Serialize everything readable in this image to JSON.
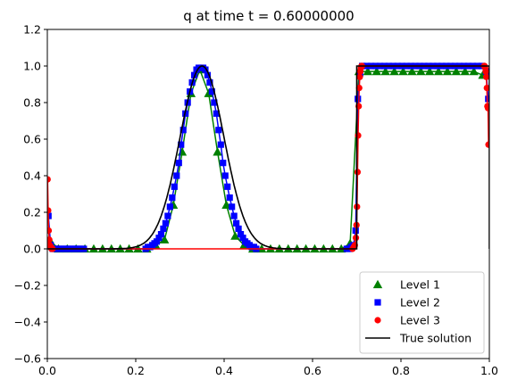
{
  "chart_data": {
    "type": "line",
    "title": "q at time t =     0.60000000",
    "xlabel": "",
    "ylabel": "",
    "xlim": [
      0,
      1
    ],
    "ylim": [
      -0.6,
      1.2
    ],
    "xticks": [
      "0.0",
      "0.2",
      "0.4",
      "0.6",
      "0.8",
      "1.0"
    ],
    "yticks": [
      "−0.6",
      "−0.4",
      "−0.2",
      "0.0",
      "0.2",
      "0.4",
      "0.6",
      "0.8",
      "1.0",
      "1.2"
    ],
    "grid": false,
    "legend_position": "bottom-right",
    "series": [
      {
        "name": "Level 1",
        "marker": "triangle",
        "color": "#008000",
        "points": [
          [
            0.005,
            0.05
          ],
          [
            0.025,
            0.0
          ],
          [
            0.045,
            0.0
          ],
          [
            0.065,
            0.0
          ],
          [
            0.085,
            0.0
          ],
          [
            0.105,
            0.0
          ],
          [
            0.125,
            0.0
          ],
          [
            0.145,
            0.0
          ],
          [
            0.165,
            0.0
          ],
          [
            0.185,
            0.0
          ],
          [
            0.205,
            0.0
          ],
          [
            0.225,
            0.0
          ],
          [
            0.245,
            0.02
          ],
          [
            0.265,
            0.05
          ],
          [
            0.285,
            0.24
          ],
          [
            0.305,
            0.53
          ],
          [
            0.325,
            0.85
          ],
          [
            0.345,
            0.98
          ],
          [
            0.365,
            0.85
          ],
          [
            0.385,
            0.53
          ],
          [
            0.405,
            0.24
          ],
          [
            0.425,
            0.07
          ],
          [
            0.445,
            0.02
          ],
          [
            0.465,
            0.0
          ],
          [
            0.485,
            0.0
          ],
          [
            0.505,
            0.0
          ],
          [
            0.525,
            0.0
          ],
          [
            0.545,
            0.0
          ],
          [
            0.565,
            0.0
          ],
          [
            0.585,
            0.0
          ],
          [
            0.605,
            0.0
          ],
          [
            0.625,
            0.0
          ],
          [
            0.645,
            0.0
          ],
          [
            0.665,
            0.0
          ],
          [
            0.685,
            0.03
          ],
          [
            0.705,
            0.97
          ],
          [
            0.725,
            0.97
          ],
          [
            0.745,
            0.97
          ],
          [
            0.765,
            0.97
          ],
          [
            0.785,
            0.97
          ],
          [
            0.805,
            0.97
          ],
          [
            0.825,
            0.97
          ],
          [
            0.845,
            0.97
          ],
          [
            0.865,
            0.97
          ],
          [
            0.885,
            0.97
          ],
          [
            0.905,
            0.97
          ],
          [
            0.925,
            0.97
          ],
          [
            0.945,
            0.97
          ],
          [
            0.965,
            0.97
          ],
          [
            0.985,
            0.95
          ]
        ]
      },
      {
        "name": "Level 2",
        "marker": "square",
        "color": "#0000ff",
        "points": [
          [
            0.0025,
            0.18
          ],
          [
            0.0075,
            0.02
          ],
          [
            0.0125,
            0.0
          ],
          [
            0.0175,
            0.0
          ],
          [
            0.0225,
            0.0
          ],
          [
            0.0275,
            0.0
          ],
          [
            0.0325,
            0.0
          ],
          [
            0.0375,
            0.0
          ],
          [
            0.0425,
            0.0
          ],
          [
            0.0475,
            0.0
          ],
          [
            0.0525,
            0.0
          ],
          [
            0.0575,
            0.0
          ],
          [
            0.0625,
            0.0
          ],
          [
            0.0675,
            0.0
          ],
          [
            0.0725,
            0.0
          ],
          [
            0.0775,
            0.0
          ],
          [
            0.0825,
            0.0
          ],
          [
            0.2225,
            0.0
          ],
          [
            0.2275,
            0.01
          ],
          [
            0.2325,
            0.01
          ],
          [
            0.2375,
            0.02
          ],
          [
            0.2425,
            0.03
          ],
          [
            0.2475,
            0.04
          ],
          [
            0.2525,
            0.06
          ],
          [
            0.2575,
            0.08
          ],
          [
            0.2625,
            0.11
          ],
          [
            0.2675,
            0.14
          ],
          [
            0.2725,
            0.18
          ],
          [
            0.2775,
            0.23
          ],
          [
            0.2825,
            0.28
          ],
          [
            0.2875,
            0.34
          ],
          [
            0.2925,
            0.4
          ],
          [
            0.2975,
            0.47
          ],
          [
            0.3025,
            0.57
          ],
          [
            0.3075,
            0.65
          ],
          [
            0.3125,
            0.74
          ],
          [
            0.3175,
            0.8
          ],
          [
            0.3225,
            0.86
          ],
          [
            0.3275,
            0.91
          ],
          [
            0.3325,
            0.95
          ],
          [
            0.3375,
            0.98
          ],
          [
            0.3425,
            0.99
          ],
          [
            0.3475,
            0.99
          ],
          [
            0.3525,
            0.99
          ],
          [
            0.3575,
            0.98
          ],
          [
            0.3625,
            0.95
          ],
          [
            0.3675,
            0.91
          ],
          [
            0.3725,
            0.86
          ],
          [
            0.3775,
            0.8
          ],
          [
            0.3825,
            0.74
          ],
          [
            0.3875,
            0.65
          ],
          [
            0.3925,
            0.57
          ],
          [
            0.3975,
            0.47
          ],
          [
            0.4025,
            0.4
          ],
          [
            0.4075,
            0.34
          ],
          [
            0.4125,
            0.28
          ],
          [
            0.4175,
            0.23
          ],
          [
            0.4225,
            0.18
          ],
          [
            0.4275,
            0.14
          ],
          [
            0.4325,
            0.11
          ],
          [
            0.4375,
            0.08
          ],
          [
            0.4425,
            0.06
          ],
          [
            0.4475,
            0.04
          ],
          [
            0.4525,
            0.03
          ],
          [
            0.4575,
            0.02
          ],
          [
            0.4625,
            0.01
          ],
          [
            0.4675,
            0.01
          ],
          [
            0.4725,
            0.0
          ],
          [
            0.6775,
            0.0
          ],
          [
            0.6825,
            0.0
          ],
          [
            0.6875,
            0.01
          ],
          [
            0.6925,
            0.02
          ],
          [
            0.6975,
            0.1
          ],
          [
            0.7025,
            0.82
          ],
          [
            0.7075,
            0.96
          ],
          [
            0.7125,
            1.0
          ],
          [
            0.7225,
            1.0
          ],
          [
            0.7325,
            1.0
          ],
          [
            0.7425,
            1.0
          ],
          [
            0.7525,
            1.0
          ],
          [
            0.7625,
            1.0
          ],
          [
            0.7725,
            1.0
          ],
          [
            0.7825,
            1.0
          ],
          [
            0.7925,
            1.0
          ],
          [
            0.8025,
            1.0
          ],
          [
            0.8125,
            1.0
          ],
          [
            0.8225,
            1.0
          ],
          [
            0.8325,
            1.0
          ],
          [
            0.8425,
            1.0
          ],
          [
            0.8525,
            1.0
          ],
          [
            0.8625,
            1.0
          ],
          [
            0.8725,
            1.0
          ],
          [
            0.8825,
            1.0
          ],
          [
            0.8925,
            1.0
          ],
          [
            0.9025,
            1.0
          ],
          [
            0.9125,
            1.0
          ],
          [
            0.9225,
            1.0
          ],
          [
            0.9325,
            1.0
          ],
          [
            0.9425,
            1.0
          ],
          [
            0.9525,
            1.0
          ],
          [
            0.9625,
            1.0
          ],
          [
            0.9725,
            1.0
          ],
          [
            0.9825,
            1.0
          ],
          [
            0.9925,
            0.97
          ],
          [
            0.9975,
            0.82
          ]
        ]
      },
      {
        "name": "Level 3",
        "marker": "circle",
        "color": "#ff0000",
        "points": [
          [
            0.0006,
            0.38
          ],
          [
            0.0019,
            0.21
          ],
          [
            0.0031,
            0.1
          ],
          [
            0.0044,
            0.05
          ],
          [
            0.0056,
            0.02
          ],
          [
            0.0069,
            0.01
          ],
          [
            0.0081,
            0.01
          ],
          [
            0.0094,
            0.0
          ],
          [
            0.0106,
            0.0
          ],
          [
            0.0119,
            0.0
          ],
          [
            0.6906,
            0.0
          ],
          [
            0.6931,
            0.01
          ],
          [
            0.6956,
            0.02
          ],
          [
            0.6981,
            0.06
          ],
          [
            0.6994,
            0.13
          ],
          [
            0.7006,
            0.23
          ],
          [
            0.7019,
            0.42
          ],
          [
            0.7031,
            0.62
          ],
          [
            0.7044,
            0.78
          ],
          [
            0.7056,
            0.88
          ],
          [
            0.7069,
            0.94
          ],
          [
            0.7081,
            0.97
          ],
          [
            0.7094,
            0.99
          ],
          [
            0.7106,
            1.0
          ],
          [
            0.7119,
            1.0
          ],
          [
            0.9881,
            1.0
          ],
          [
            0.9894,
            1.0
          ],
          [
            0.9906,
            0.99
          ],
          [
            0.9919,
            0.97
          ],
          [
            0.9931,
            0.94
          ],
          [
            0.9944,
            0.88
          ],
          [
            0.9956,
            0.78
          ],
          [
            0.9969,
            0.77
          ],
          [
            0.9981,
            0.57
          ],
          [
            0.9994,
            0.57
          ]
        ]
      },
      {
        "name": "True solution",
        "marker": "line",
        "color": "#000000"
      }
    ]
  }
}
